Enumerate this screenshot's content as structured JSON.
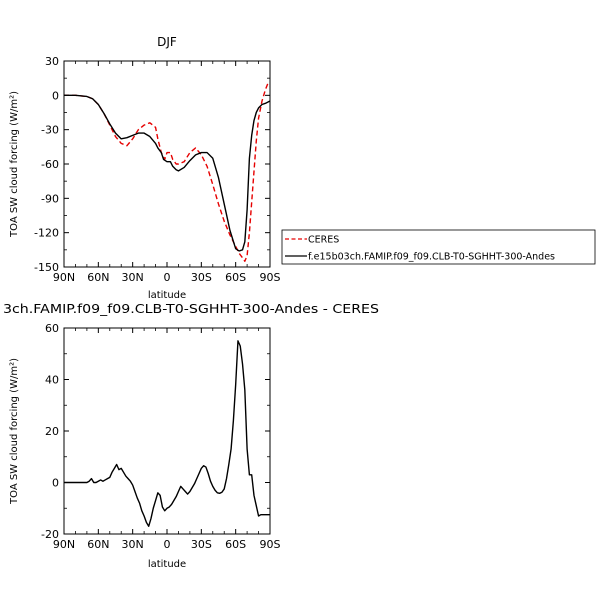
{
  "chart_data": [
    {
      "type": "line",
      "title": "DJF",
      "xlabel": "latitude",
      "ylabel": "TOA SW cloud forcing (W/m²)",
      "xlim": [
        90,
        -90
      ],
      "ylim": [
        -150,
        30
      ],
      "xticks": [
        90,
        60,
        30,
        0,
        -30,
        -60,
        -90
      ],
      "xtick_labels": [
        "90N",
        "60N",
        "30N",
        "0",
        "30S",
        "60S",
        "90S"
      ],
      "yticks": [
        30,
        0,
        -30,
        -60,
        -90,
        -120,
        -150
      ],
      "ytick_labels": [
        "30",
        "0",
        "-30",
        "-60",
        "-90",
        "-120",
        "-150"
      ],
      "legend_position": "outside-right",
      "series": [
        {
          "name": "CERES",
          "color": "#e60000",
          "dash": "dashed",
          "x": [
            90,
            80,
            70,
            65,
            60,
            55,
            50,
            45,
            40,
            35,
            30,
            25,
            20,
            15,
            10,
            8,
            5,
            2,
            0,
            -3,
            -5,
            -8,
            -10,
            -15,
            -20,
            -25,
            -30,
            -35,
            -40,
            -45,
            -50,
            -55,
            -60,
            -63,
            -66,
            -68,
            -70,
            -72,
            -75,
            -78,
            -80,
            -83,
            -86,
            -88,
            -90
          ],
          "values": [
            0,
            0,
            -1,
            -3,
            -8,
            -16,
            -26,
            -36,
            -42,
            -44,
            -38,
            -30,
            -26,
            -24,
            -28,
            -38,
            -50,
            -56,
            -50,
            -50,
            -56,
            -60,
            -60,
            -58,
            -50,
            -46,
            -52,
            -62,
            -78,
            -95,
            -110,
            -122,
            -132,
            -138,
            -142,
            -145,
            -140,
            -120,
            -80,
            -40,
            -20,
            -5,
            5,
            10,
            8
          ]
        },
        {
          "name": "f.e15b03ch.FAMIP.f09_f09.CLB-T0-SGHHT-300-Andes",
          "color": "#000000",
          "dash": "solid",
          "x": [
            90,
            80,
            70,
            65,
            60,
            55,
            50,
            45,
            40,
            35,
            30,
            25,
            20,
            15,
            10,
            8,
            5,
            3,
            0,
            -3,
            -5,
            -8,
            -10,
            -15,
            -20,
            -25,
            -30,
            -35,
            -40,
            -45,
            -50,
            -55,
            -60,
            -63,
            -66,
            -68,
            -70,
            -72,
            -74,
            -76,
            -78,
            -80,
            -83,
            -86,
            -90
          ],
          "values": [
            0,
            0,
            -1,
            -3,
            -8,
            -16,
            -25,
            -33,
            -38,
            -37,
            -35,
            -33,
            -33,
            -36,
            -42,
            -46,
            -50,
            -56,
            -58,
            -58,
            -62,
            -65,
            -66,
            -63,
            -57,
            -52,
            -50,
            -50,
            -55,
            -72,
            -95,
            -118,
            -134,
            -136,
            -135,
            -128,
            -100,
            -55,
            -35,
            -22,
            -15,
            -11,
            -8,
            -7,
            -5
          ]
        }
      ]
    },
    {
      "type": "line",
      "title": "3ch.FAMIP.f09_f09.CLB-T0-SGHHT-300-Andes - CERES",
      "xlabel": "latitude",
      "ylabel": "TOA SW cloud forcing (W/m²)",
      "xlim": [
        90,
        -90
      ],
      "ylim": [
        -20,
        60
      ],
      "xticks": [
        90,
        60,
        30,
        0,
        -30,
        -60,
        -90
      ],
      "xtick_labels": [
        "90N",
        "60N",
        "30N",
        "0",
        "30S",
        "60S",
        "90S"
      ],
      "yticks": [
        60,
        40,
        20,
        0,
        -20
      ],
      "ytick_labels": [
        "60",
        "40",
        "20",
        "0",
        "-20"
      ],
      "series": [
        {
          "color": "#000000",
          "dash": "solid",
          "x": [
            90,
            80,
            75,
            70,
            68,
            66,
            64,
            62,
            60,
            58,
            56,
            54,
            52,
            50,
            48,
            46,
            44,
            42,
            40,
            38,
            36,
            34,
            32,
            30,
            28,
            26,
            24,
            22,
            20,
            18,
            16,
            14,
            12,
            10,
            8,
            6,
            4,
            2,
            0,
            -2,
            -4,
            -6,
            -8,
            -10,
            -12,
            -14,
            -16,
            -18,
            -20,
            -22,
            -24,
            -26,
            -28,
            -30,
            -32,
            -34,
            -36,
            -38,
            -40,
            -42,
            -44,
            -46,
            -48,
            -50,
            -52,
            -54,
            -56,
            -58,
            -60,
            -62,
            -64,
            -66,
            -68,
            -70,
            -72,
            -74,
            -76,
            -78,
            -80,
            -82,
            -84,
            -86,
            -88,
            -90
          ],
          "values": [
            0,
            0,
            0,
            0,
            0.5,
            1.5,
            0,
            0,
            0.5,
            1,
            0.5,
            1,
            1.5,
            2,
            4,
            5.5,
            7,
            5,
            5.5,
            4,
            2.5,
            1.5,
            0.5,
            -1,
            -3.5,
            -6,
            -8,
            -11,
            -13,
            -15.5,
            -17,
            -14,
            -10,
            -7,
            -4,
            -5,
            -9.5,
            -11,
            -10,
            -9.5,
            -8.5,
            -7,
            -5.5,
            -3.5,
            -1.5,
            -2.5,
            -3.5,
            -4.5,
            -3.5,
            -2,
            -0.5,
            1.5,
            3.5,
            5.5,
            6.5,
            6,
            3.5,
            0.5,
            -1.5,
            -3,
            -4,
            -4.2,
            -3.8,
            -2.5,
            1.5,
            7,
            13,
            24,
            38,
            55,
            53,
            46,
            36,
            13,
            3,
            3,
            -5,
            -9,
            -13,
            -12.5,
            -12.5,
            -12.5,
            -12.5,
            -12.5
          ]
        }
      ]
    }
  ]
}
